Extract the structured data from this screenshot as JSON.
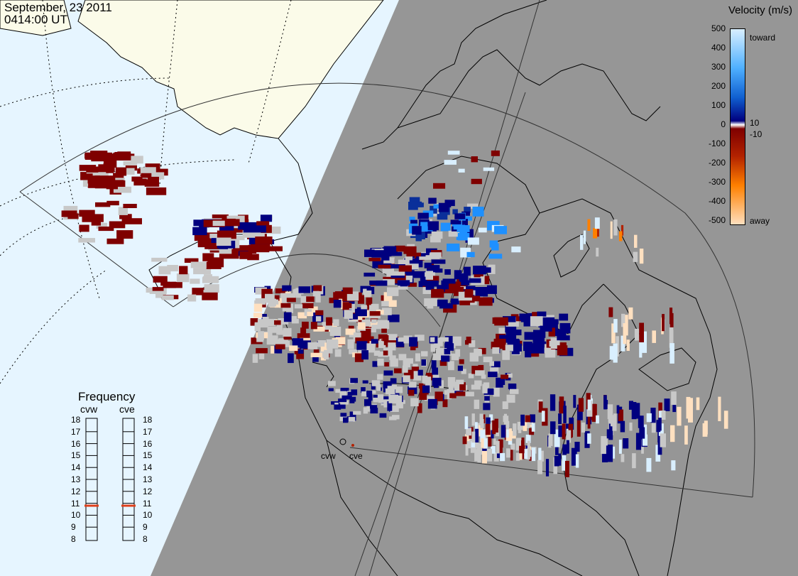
{
  "header": {
    "date": "September, 23 2011",
    "time": "0414:00 UT"
  },
  "velocity_scale": {
    "title": "Velocity (m/s)",
    "toward_label": "toward",
    "away_label": "away",
    "ticks": [
      "500",
      "400",
      "300",
      "200",
      "100",
      "0",
      "-100",
      "-200",
      "-300",
      "-400",
      "-500"
    ],
    "near_zero_ticks": [
      "10",
      "-10"
    ],
    "colors": {
      "toward_light": "#d9efff",
      "toward_mid": "#1e90ff",
      "toward_dark": "#0a2f9a",
      "toward_min": "#00007f",
      "away_min": "#7f0000",
      "away_dark": "#b22200",
      "away_mid": "#ff8000",
      "away_light": "#ffe0c0",
      "ground_scatter": "#c8c8c8"
    }
  },
  "frequency_panel": {
    "title": "Frequency",
    "columns": [
      {
        "name": "cvw",
        "value_mhz": 10.8
      },
      {
        "name": "cve",
        "value_mhz": 10.8
      }
    ],
    "ticks": [
      "18",
      "17",
      "16",
      "15",
      "14",
      "13",
      "12",
      "11",
      "10",
      "9",
      "8"
    ],
    "range": [
      8,
      18
    ]
  },
  "radars": [
    {
      "name": "cvw"
    },
    {
      "name": "cve"
    }
  ],
  "map_colors": {
    "night": "#969696",
    "day_ocean": "#e6f5ff",
    "day_land": "#fbfbe9",
    "coastline": "#000000"
  }
}
